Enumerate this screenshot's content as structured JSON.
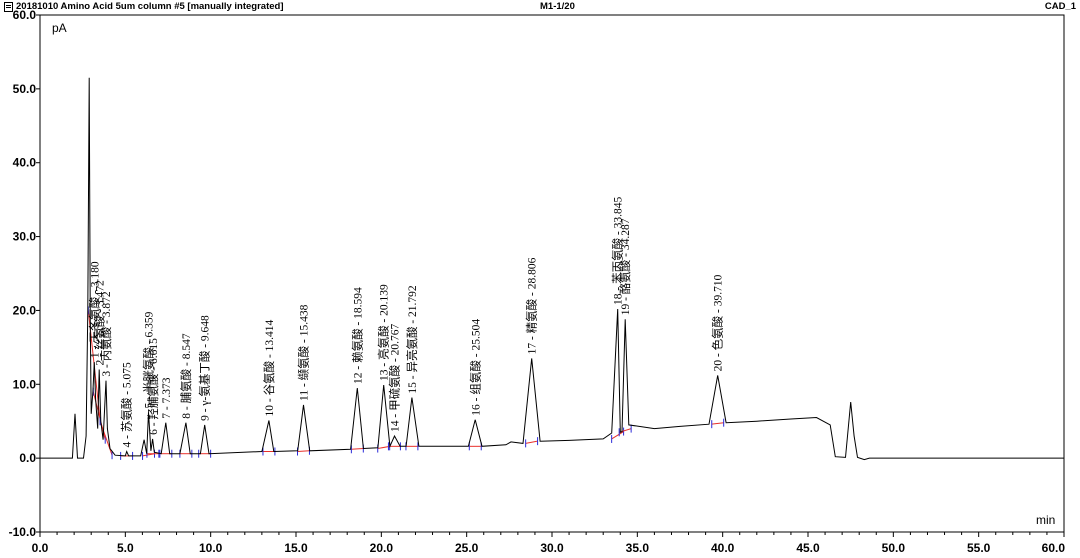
{
  "header": {
    "file_title": "20181010 Amino Acid 5um column #5 [manually integrated]",
    "method_index": "M1-1/20",
    "channel": "CAD_1"
  },
  "chart_data": {
    "type": "line",
    "xlabel": "min",
    "ylabel": "pA",
    "xlim": [
      0,
      60
    ],
    "ylim": [
      -10,
      60
    ],
    "x_ticks": [
      0,
      5,
      10,
      15,
      20,
      25,
      30,
      35,
      40,
      45,
      50,
      55,
      60
    ],
    "x_tick_labels": [
      "0.0",
      "5.0",
      "10.0",
      "15.0",
      "20.0",
      "25.0",
      "30.0",
      "35.0",
      "40.0",
      "45.0",
      "50.0",
      "55.0",
      "60.0"
    ],
    "y_ticks": [
      -10,
      0,
      10,
      20,
      30,
      40,
      50,
      60
    ],
    "y_tick_labels": [
      "-10.0",
      "0.0",
      "10.0",
      "20.0",
      "30.0",
      "40.0",
      "50.0",
      "60.0"
    ],
    "grid": false,
    "line_color": "#000000",
    "baseline_color": "#e8302b",
    "marker_color": "#2a2ad8",
    "trace": [
      [
        0,
        0
      ],
      [
        1.9,
        0
      ],
      [
        2.05,
        6
      ],
      [
        2.2,
        0
      ],
      [
        2.55,
        0
      ],
      [
        2.7,
        3
      ],
      [
        2.8,
        20
      ],
      [
        2.88,
        51.5
      ],
      [
        2.95,
        18
      ],
      [
        3.0,
        6
      ],
      [
        3.1,
        9
      ],
      [
        3.18,
        13
      ],
      [
        3.26,
        8
      ],
      [
        3.38,
        4
      ],
      [
        3.47,
        12
      ],
      [
        3.56,
        5
      ],
      [
        3.7,
        2.5
      ],
      [
        3.87,
        10.5
      ],
      [
        3.95,
        4
      ],
      [
        4.1,
        1.3
      ],
      [
        4.4,
        0.4
      ],
      [
        5.0,
        0.3
      ],
      [
        5.08,
        0.9
      ],
      [
        5.2,
        0.3
      ],
      [
        5.9,
        0.3
      ],
      [
        6.1,
        2.5
      ],
      [
        6.25,
        0.6
      ],
      [
        6.36,
        6.2
      ],
      [
        6.5,
        1.0
      ],
      [
        6.6,
        2.6
      ],
      [
        6.7,
        0.8
      ],
      [
        7.1,
        0.6
      ],
      [
        7.37,
        4.8
      ],
      [
        7.6,
        0.6
      ],
      [
        8.2,
        0.6
      ],
      [
        8.55,
        4.8
      ],
      [
        8.8,
        0.6
      ],
      [
        9.4,
        0.6
      ],
      [
        9.65,
        4.5
      ],
      [
        9.9,
        0.6
      ],
      [
        13.0,
        0.9
      ],
      [
        13.41,
        5.1
      ],
      [
        13.7,
        0.9
      ],
      [
        15.1,
        1.0
      ],
      [
        15.44,
        7.2
      ],
      [
        15.8,
        1.0
      ],
      [
        18.2,
        1.2
      ],
      [
        18.59,
        9.5
      ],
      [
        18.95,
        1.3
      ],
      [
        19.8,
        1.4
      ],
      [
        20.14,
        9.9
      ],
      [
        20.5,
        1.6
      ],
      [
        20.77,
        3.0
      ],
      [
        21.1,
        1.6
      ],
      [
        21.45,
        1.6
      ],
      [
        21.79,
        8.2
      ],
      [
        22.2,
        1.6
      ],
      [
        25.1,
        1.6
      ],
      [
        25.5,
        5.2
      ],
      [
        25.9,
        1.6
      ],
      [
        27.3,
        1.8
      ],
      [
        27.6,
        2.2
      ],
      [
        28.3,
        2.0
      ],
      [
        28.81,
        13.5
      ],
      [
        29.3,
        2.3
      ],
      [
        31,
        2.4
      ],
      [
        33.0,
        2.6
      ],
      [
        33.5,
        3.4
      ],
      [
        33.85,
        20.2
      ],
      [
        34.0,
        3.5
      ],
      [
        34.1,
        3.6
      ],
      [
        34.29,
        18.8
      ],
      [
        34.5,
        4.5
      ],
      [
        36,
        4.0
      ],
      [
        37.5,
        4.3
      ],
      [
        39.2,
        4.6
      ],
      [
        39.71,
        11.2
      ],
      [
        40.2,
        4.8
      ],
      [
        42,
        5.0
      ],
      [
        44,
        5.3
      ],
      [
        45.5,
        5.5
      ],
      [
        46.3,
        4.5
      ],
      [
        46.6,
        0.2
      ],
      [
        47.2,
        0.1
      ],
      [
        47.5,
        7.6
      ],
      [
        47.7,
        3
      ],
      [
        47.9,
        0.1
      ],
      [
        48.3,
        -0.2
      ],
      [
        48.6,
        0
      ],
      [
        60,
        0
      ]
    ],
    "peaks": [
      {
        "label": "1 - 天冬氨酸 - 3.180",
        "x": 3.18,
        "y": 13
      },
      {
        "label": "2 - 丝氨酸 - 3.472",
        "x": 3.472,
        "y": 12
      },
      {
        "label": "3 - 丙氨酸 - 3.872",
        "x": 3.872,
        "y": 10.5
      },
      {
        "label": "4 - 苏氨酸 - 5.075",
        "x": 5.075,
        "y": 0.9
      },
      {
        "label": "5 - 半胱氨酸 - 6.359",
        "x": 6.359,
        "y": 6.2
      },
      {
        "label": "6 - 羟脯氨酸 - 6.615",
        "x": 6.615,
        "y": 2.6
      },
      {
        "label": "7 - 7.373",
        "x": 7.373,
        "y": 4.8
      },
      {
        "label": "8 - 脯氨酸 - 8.547",
        "x": 8.547,
        "y": 4.8
      },
      {
        "label": "9 - γ-氨基丁酸 - 9.648",
        "x": 9.648,
        "y": 4.5
      },
      {
        "label": "10 - 谷氨酸 - 13.414",
        "x": 13.414,
        "y": 5.1
      },
      {
        "label": "11 - 缬氨酸 - 15.438",
        "x": 15.438,
        "y": 7.2
      },
      {
        "label": "12 - 赖氨酸 - 18.594",
        "x": 18.594,
        "y": 9.5
      },
      {
        "label": "13 - 亮氨酸 - 20.139",
        "x": 20.139,
        "y": 9.9
      },
      {
        "label": "14 - 甲硫氨酸 - 20.767",
        "x": 20.767,
        "y": 3.0
      },
      {
        "label": "15 - 异亮氨酸 - 21.792",
        "x": 21.792,
        "y": 8.2
      },
      {
        "label": "16 - 组氨酸 - 25.504",
        "x": 25.504,
        "y": 5.2
      },
      {
        "label": "17 - 精氨酸 - 28.806",
        "x": 28.806,
        "y": 13.5
      },
      {
        "label": "18 - 苯丙氨酸 - 33.845",
        "x": 33.845,
        "y": 20.2
      },
      {
        "label": "19 - 酪氨酸 - 34.287",
        "x": 34.287,
        "y": 18.8
      },
      {
        "label": "20 - 色氨酸 - 39.710",
        "x": 39.71,
        "y": 11.2
      }
    ]
  }
}
